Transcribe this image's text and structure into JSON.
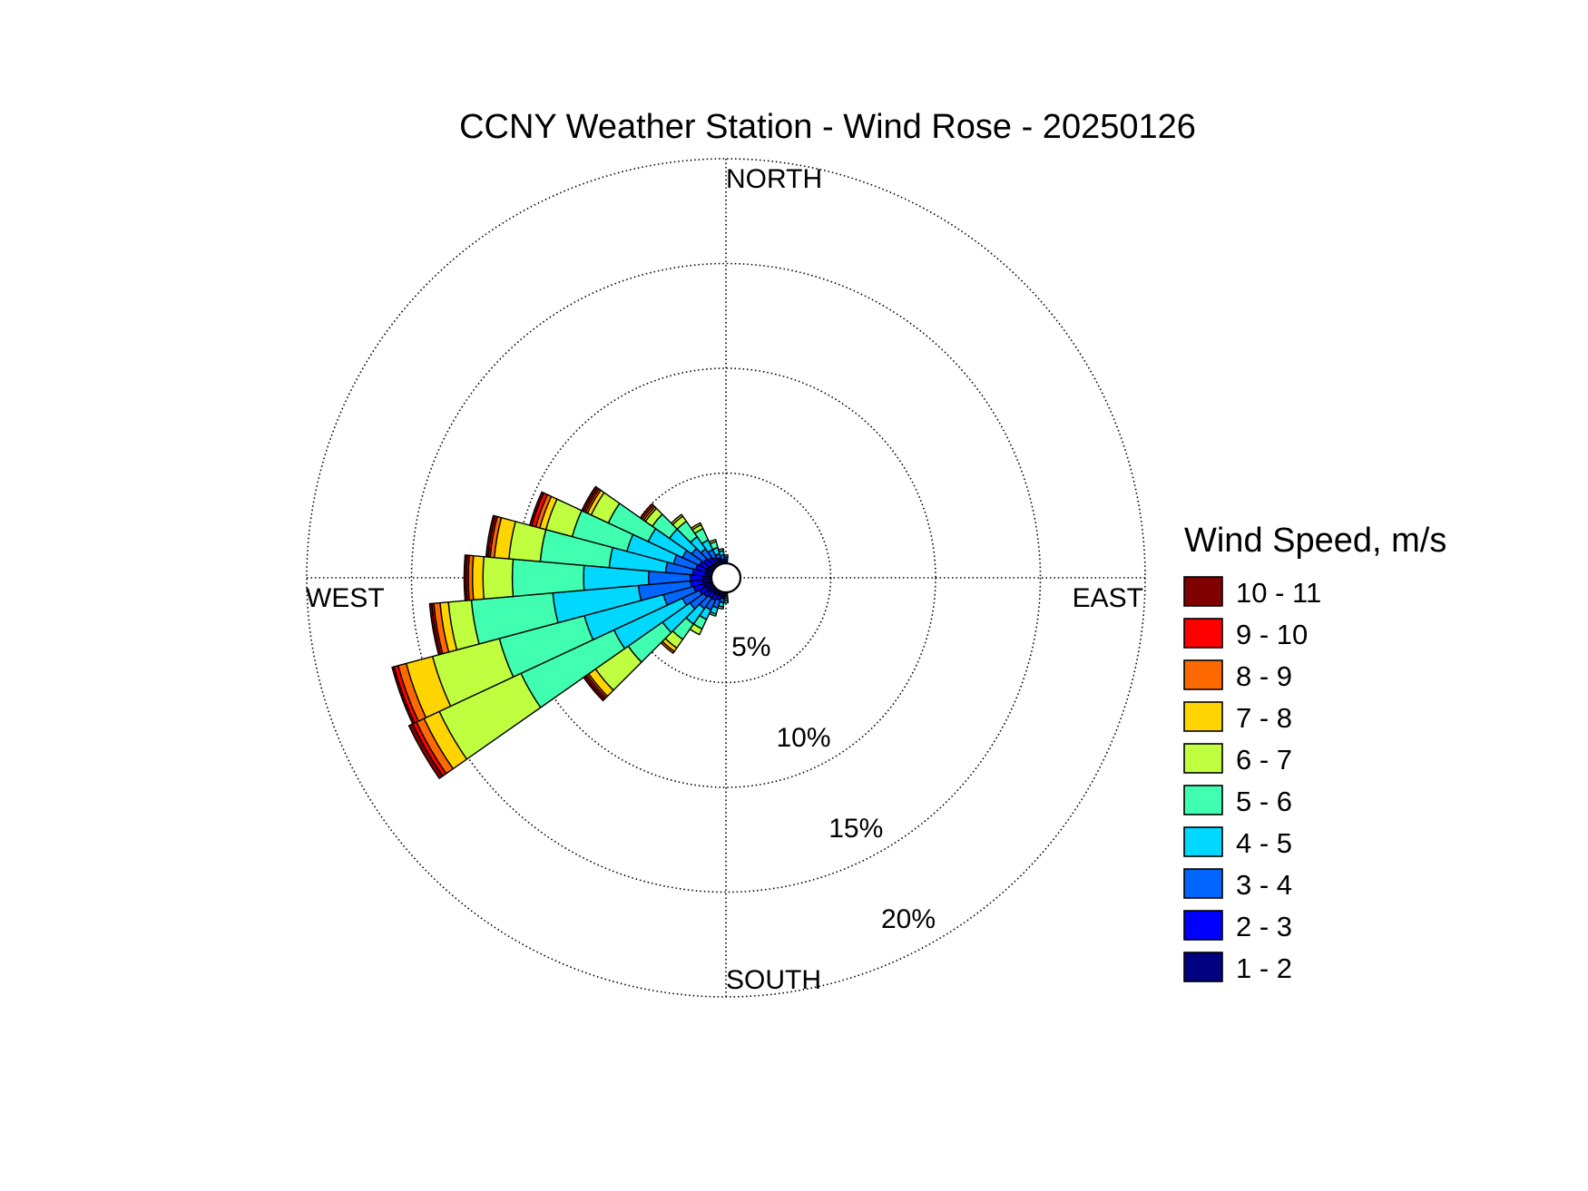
{
  "chart_data": {
    "type": "wind-rose",
    "title": "CCNY Weather Station - Wind Rose - 20250126",
    "directions": {
      "north": "NORTH",
      "east": "EAST",
      "south": "SOUTH",
      "west": "WEST"
    },
    "radial_axis": {
      "unit": "%",
      "max": 20,
      "ticks": [
        5,
        10,
        15,
        20
      ],
      "tick_labels": [
        "5%",
        "10%",
        "15%",
        "20%"
      ],
      "grid": "dotted"
    },
    "legend": {
      "title": "Wind Speed, m/s",
      "placement": "right",
      "bins": [
        {
          "label": "10 - 11",
          "color": "#800000"
        },
        {
          "label": "9 - 10",
          "color": "#ff0000"
        },
        {
          "label": "8 - 9",
          "color": "#ff6a00"
        },
        {
          "label": "7 - 8",
          "color": "#ffd400"
        },
        {
          "label": "6 - 7",
          "color": "#bfff40"
        },
        {
          "label": "5 - 6",
          "color": "#40ffb0"
        },
        {
          "label": "4 - 5",
          "color": "#00d8ff"
        },
        {
          "label": "3 - 4",
          "color": "#0066ff"
        },
        {
          "label": "2 - 3",
          "color": "#0000ff"
        },
        {
          "label": "1 - 2",
          "color": "#000080"
        }
      ]
    },
    "bin_order_inner_to_outer": [
      "1 - 2",
      "2 - 3",
      "3 - 4",
      "4 - 5",
      "5 - 6",
      "6 - 7",
      "7 - 8",
      "8 - 9",
      "9 - 10",
      "10 - 11"
    ],
    "sector_width_deg": 10,
    "sectors": [
      {
        "direction_deg": 240,
        "cumulative_percent": [
          0.3,
          0.7,
          1.6,
          5.2,
          10.1,
          14.4,
          15.2,
          15.6,
          15.8,
          16.0
        ]
      },
      {
        "direction_deg": 250,
        "cumulative_percent": [
          0.4,
          0.9,
          2.4,
          6.3,
          10.5,
          13.8,
          15.1,
          15.5,
          15.7,
          15.8
        ]
      },
      {
        "direction_deg": 260,
        "cumulative_percent": [
          0.4,
          1.0,
          3.5,
          7.6,
          11.5,
          12.6,
          13.0,
          13.3,
          13.4,
          13.5
        ]
      },
      {
        "direction_deg": 270,
        "cumulative_percent": [
          0.4,
          1.0,
          3.0,
          6.1,
          9.5,
          10.9,
          11.4,
          11.6,
          11.7,
          11.8
        ]
      },
      {
        "direction_deg": 280,
        "cumulative_percent": [
          0.3,
          0.9,
          2.2,
          4.9,
          8.2,
          9.7,
          10.4,
          10.6,
          10.7,
          10.8
        ]
      },
      {
        "direction_deg": 290,
        "cumulative_percent": [
          0.3,
          0.8,
          1.9,
          4.2,
          6.9,
          8.2,
          8.5,
          8.7,
          8.9,
          9.0
        ]
      },
      {
        "direction_deg": 300,
        "cumulative_percent": [
          0.3,
          0.7,
          1.6,
          3.4,
          5.5,
          6.4,
          6.6,
          6.7,
          6.8,
          6.9
        ]
      },
      {
        "direction_deg": 310,
        "cumulative_percent": [
          0.2,
          0.6,
          1.3,
          2.6,
          3.6,
          4.0,
          4.1,
          4.2,
          4.3,
          4.3
        ]
      },
      {
        "direction_deg": 320,
        "cumulative_percent": [
          0.2,
          0.5,
          1.0,
          1.7,
          2.6,
          2.9,
          3.0,
          3.0,
          3.0,
          3.0
        ]
      },
      {
        "direction_deg": 330,
        "cumulative_percent": [
          0.2,
          0.4,
          0.8,
          1.3,
          1.9,
          2.1,
          2.2,
          2.2,
          2.2,
          2.2
        ]
      },
      {
        "direction_deg": 340,
        "cumulative_percent": [
          0.2,
          0.3,
          0.5,
          0.8,
          1.1,
          1.2,
          1.2,
          1.2,
          1.2,
          1.2
        ]
      },
      {
        "direction_deg": 350,
        "cumulative_percent": [
          0.1,
          0.2,
          0.4,
          0.6,
          0.7,
          0.7,
          0.7,
          0.7,
          0.7,
          0.7
        ]
      },
      {
        "direction_deg": 0,
        "cumulative_percent": [
          0.1,
          0.2,
          0.3,
          0.4,
          0.4,
          0.4,
          0.4,
          0.4,
          0.4,
          0.4
        ]
      },
      {
        "direction_deg": 180,
        "cumulative_percent": [
          0.1,
          0.2,
          0.3,
          0.4,
          0.5,
          0.5,
          0.5,
          0.5,
          0.5,
          0.5
        ]
      },
      {
        "direction_deg": 190,
        "cumulative_percent": [
          0.2,
          0.3,
          0.5,
          0.7,
          0.8,
          0.8,
          0.8,
          0.8,
          0.8,
          0.8
        ]
      },
      {
        "direction_deg": 200,
        "cumulative_percent": [
          0.2,
          0.4,
          0.8,
          1.1,
          1.2,
          1.2,
          1.2,
          1.2,
          1.2,
          1.2
        ]
      },
      {
        "direction_deg": 210,
        "cumulative_percent": [
          0.2,
          0.5,
          1.0,
          1.5,
          2.0,
          2.3,
          2.3,
          2.3,
          2.3,
          2.3
        ]
      },
      {
        "direction_deg": 220,
        "cumulative_percent": [
          0.2,
          0.5,
          1.1,
          2.0,
          2.9,
          3.4,
          3.6,
          3.7,
          3.7,
          3.7
        ]
      },
      {
        "direction_deg": 230,
        "cumulative_percent": [
          0.3,
          0.6,
          1.4,
          3.0,
          5.0,
          6.9,
          7.3,
          7.4,
          7.5,
          7.6
        ]
      }
    ]
  }
}
